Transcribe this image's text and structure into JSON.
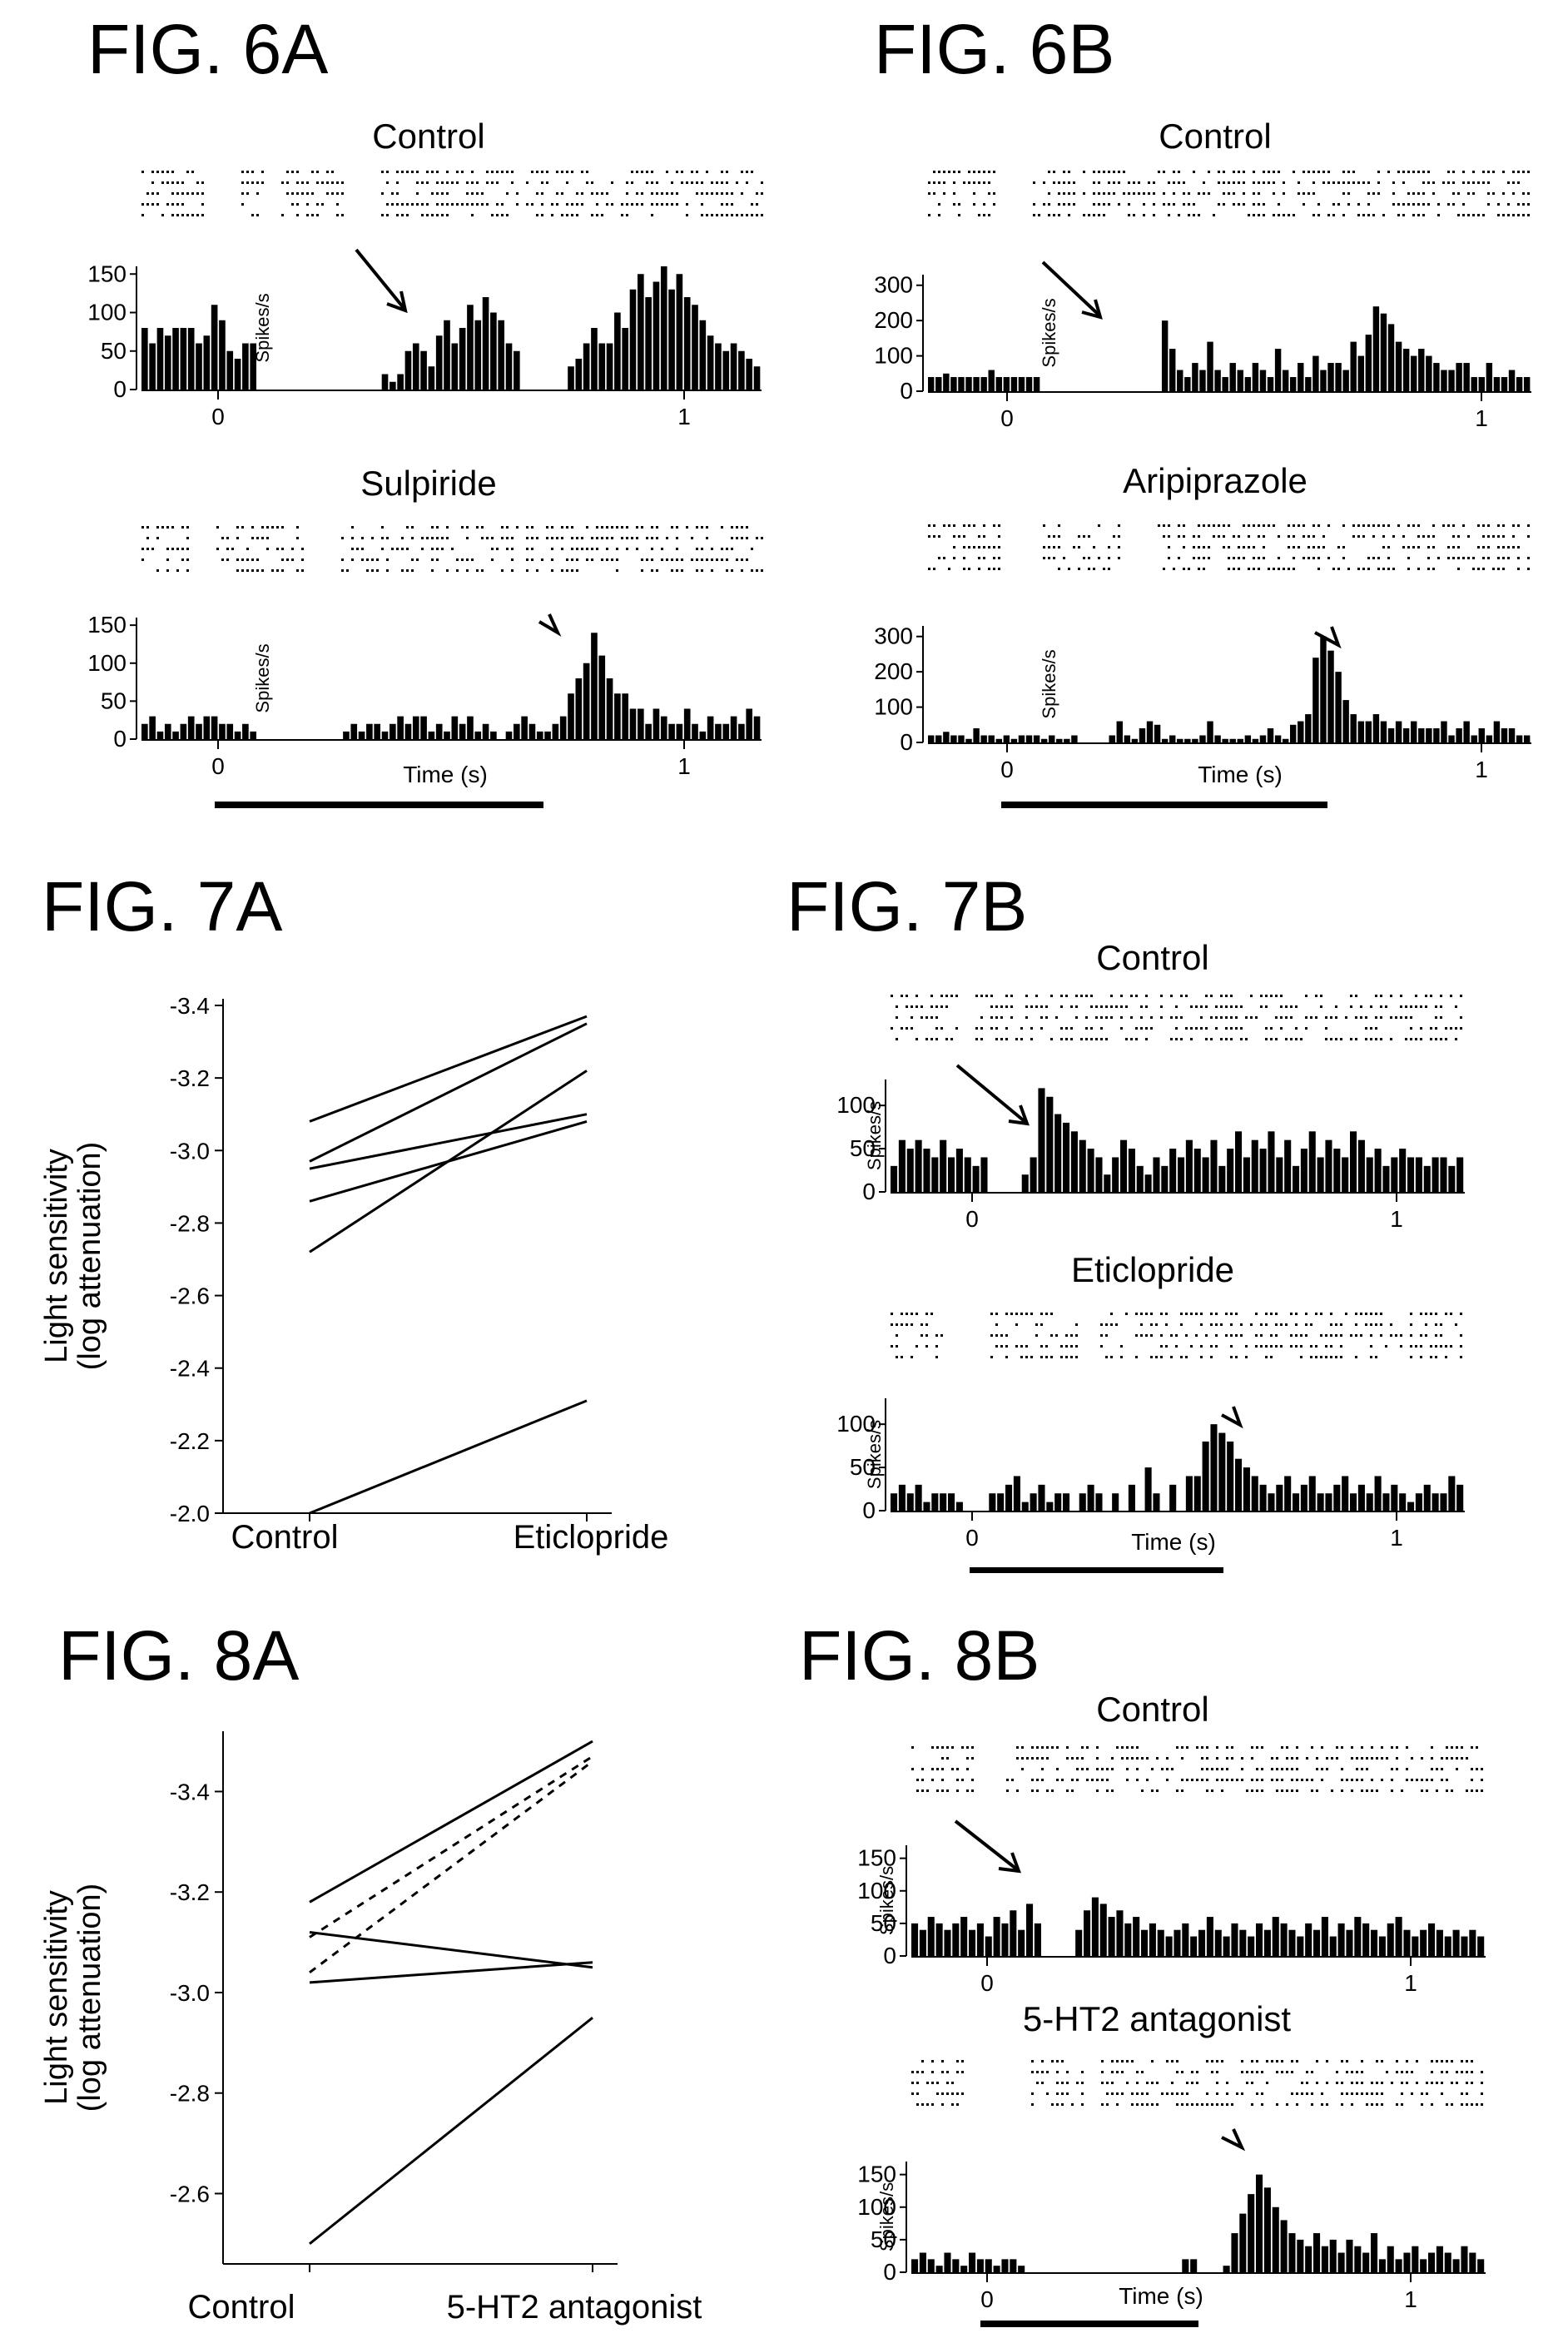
{
  "chart_data": [
    {
      "id": "6A",
      "type": "bar",
      "figure_label": "FIG. 6A",
      "ylabel": "Spikes/s",
      "xlabel": "Time (s)",
      "x_ticks": [
        "0",
        "1"
      ],
      "panels": [
        {
          "title": "Control",
          "ylim": [
            0,
            160
          ],
          "y_ticks": [
            "0",
            "50",
            "100",
            "150"
          ],
          "values": [
            80,
            60,
            80,
            70,
            80,
            80,
            80,
            60,
            70,
            110,
            90,
            50,
            40,
            60,
            60,
            0,
            0,
            0,
            0,
            0,
            0,
            0,
            0,
            0,
            0,
            0,
            0,
            0,
            0,
            0,
            0,
            20,
            10,
            20,
            50,
            60,
            50,
            30,
            70,
            90,
            60,
            80,
            110,
            90,
            120,
            100,
            90,
            60,
            50,
            0,
            0,
            0,
            0,
            0,
            0,
            30,
            40,
            60,
            80,
            60,
            60,
            100,
            80,
            130,
            150,
            120,
            140,
            160,
            130,
            150,
            120,
            110,
            90,
            70,
            60,
            50,
            60,
            50,
            40,
            30
          ]
        },
        {
          "title": "Sulpiride",
          "ylim": [
            0,
            160
          ],
          "y_ticks": [
            "0",
            "50",
            "100",
            "150"
          ],
          "values": [
            20,
            30,
            10,
            20,
            10,
            20,
            30,
            20,
            30,
            30,
            20,
            20,
            10,
            20,
            10,
            0,
            0,
            0,
            0,
            0,
            0,
            0,
            0,
            0,
            0,
            0,
            10,
            20,
            10,
            20,
            20,
            10,
            20,
            30,
            20,
            30,
            30,
            10,
            20,
            10,
            30,
            20,
            30,
            10,
            20,
            10,
            0,
            10,
            20,
            30,
            20,
            10,
            10,
            20,
            30,
            60,
            80,
            100,
            140,
            110,
            80,
            60,
            60,
            40,
            40,
            20,
            40,
            30,
            20,
            20,
            40,
            20,
            10,
            30,
            20,
            20,
            30,
            20,
            40,
            30
          ]
        }
      ]
    },
    {
      "id": "6B",
      "type": "bar",
      "figure_label": "FIG. 6B",
      "ylabel": "Spikes/s",
      "xlabel": "Time (s)",
      "x_ticks": [
        "0",
        "1"
      ],
      "panels": [
        {
          "title": "Control",
          "ylim": [
            0,
            330
          ],
          "y_ticks": [
            "0",
            "100",
            "200",
            "300"
          ],
          "values": [
            40,
            40,
            50,
            40,
            40,
            40,
            40,
            40,
            60,
            40,
            40,
            40,
            40,
            40,
            40,
            0,
            0,
            0,
            0,
            0,
            0,
            0,
            0,
            0,
            0,
            0,
            0,
            0,
            0,
            0,
            0,
            200,
            120,
            60,
            40,
            80,
            60,
            140,
            60,
            40,
            80,
            60,
            40,
            80,
            60,
            40,
            120,
            60,
            40,
            80,
            40,
            100,
            60,
            80,
            80,
            60,
            140,
            100,
            160,
            240,
            220,
            190,
            140,
            120,
            100,
            120,
            100,
            80,
            60,
            60,
            80,
            80,
            40,
            40,
            80,
            40,
            40,
            60,
            40,
            40
          ]
        },
        {
          "title": "Aripiprazole",
          "ylim": [
            0,
            330
          ],
          "y_ticks": [
            "0",
            "100",
            "200",
            "300"
          ],
          "values": [
            20,
            20,
            30,
            20,
            20,
            10,
            40,
            20,
            20,
            10,
            20,
            10,
            20,
            20,
            20,
            10,
            20,
            10,
            10,
            20,
            0,
            0,
            0,
            0,
            20,
            60,
            20,
            10,
            40,
            60,
            50,
            10,
            20,
            10,
            10,
            10,
            20,
            60,
            20,
            10,
            10,
            10,
            20,
            10,
            20,
            40,
            20,
            10,
            50,
            60,
            80,
            240,
            300,
            260,
            200,
            120,
            80,
            60,
            60,
            80,
            60,
            40,
            60,
            40,
            60,
            40,
            40,
            40,
            60,
            20,
            40,
            60,
            20,
            40,
            20,
            60,
            40,
            40,
            20,
            20
          ]
        }
      ]
    },
    {
      "id": "7A",
      "type": "line",
      "figure_label": "FIG. 7A",
      "ylabel": "Light sensitivity (log attenuation)",
      "categories": [
        "Control",
        "Eticlopride"
      ],
      "y_ticks": [
        "-2.0",
        "-2.2",
        "-2.4",
        "-2.6",
        "-2.8",
        "-3.0",
        "-3.2",
        "-3.4"
      ],
      "ylim": [
        -2.0,
        -3.4
      ],
      "series": [
        {
          "values": [
            -3.08,
            -3.37
          ],
          "style": "solid"
        },
        {
          "values": [
            -2.97,
            -3.35
          ],
          "style": "solid"
        },
        {
          "values": [
            -2.95,
            -3.1
          ],
          "style": "solid"
        },
        {
          "values": [
            -2.86,
            -3.08
          ],
          "style": "solid"
        },
        {
          "values": [
            -2.72,
            -3.22
          ],
          "style": "solid"
        },
        {
          "values": [
            -2.0,
            -2.31
          ],
          "style": "solid"
        }
      ]
    },
    {
      "id": "7B",
      "type": "bar",
      "figure_label": "FIG. 7B",
      "ylabel": "Spikes/s",
      "xlabel": "Time (s)",
      "x_ticks": [
        "0",
        "1"
      ],
      "panels": [
        {
          "title": "Control",
          "ylim": [
            0,
            130
          ],
          "y_ticks": [
            "0",
            "50",
            "100"
          ],
          "values": [
            30,
            60,
            50,
            60,
            50,
            40,
            60,
            40,
            50,
            40,
            30,
            40,
            0,
            0,
            0,
            0,
            20,
            40,
            120,
            110,
            90,
            80,
            70,
            60,
            50,
            40,
            20,
            40,
            60,
            50,
            30,
            20,
            40,
            30,
            50,
            40,
            60,
            50,
            40,
            60,
            30,
            50,
            70,
            40,
            60,
            50,
            70,
            40,
            60,
            30,
            50,
            70,
            40,
            60,
            50,
            40,
            70,
            60,
            40,
            50,
            30,
            40,
            50,
            40,
            40,
            30,
            40,
            40,
            30,
            40
          ]
        },
        {
          "title": "Eticlopride",
          "ylim": [
            0,
            130
          ],
          "y_ticks": [
            "0",
            "50",
            "100"
          ],
          "values": [
            20,
            30,
            20,
            30,
            10,
            20,
            20,
            20,
            10,
            0,
            0,
            0,
            20,
            20,
            30,
            40,
            10,
            20,
            30,
            10,
            20,
            20,
            0,
            20,
            30,
            20,
            0,
            20,
            0,
            30,
            0,
            50,
            20,
            0,
            30,
            0,
            40,
            40,
            80,
            100,
            90,
            80,
            60,
            50,
            40,
            30,
            20,
            30,
            40,
            20,
            30,
            40,
            20,
            20,
            30,
            40,
            20,
            30,
            20,
            40,
            20,
            30,
            20,
            10,
            20,
            30,
            20,
            20,
            40,
            30
          ]
        }
      ]
    },
    {
      "id": "8A",
      "type": "line",
      "figure_label": "FIG. 8A",
      "ylabel": "Light sensitivity (log attenuation)",
      "categories": [
        "Control",
        "5-HT2 antagonist"
      ],
      "y_ticks": [
        "-2.6",
        "-2.8",
        "-3.0",
        "-3.2",
        "-3.4"
      ],
      "ylim": [
        -2.46,
        -3.52
      ],
      "series": [
        {
          "values": [
            -3.18,
            -3.5
          ],
          "style": "solid"
        },
        {
          "values": [
            -3.11,
            -3.47
          ],
          "style": "dashed"
        },
        {
          "values": [
            -3.04,
            -3.46
          ],
          "style": "dashed"
        },
        {
          "values": [
            -3.12,
            -3.05
          ],
          "style": "solid"
        },
        {
          "values": [
            -3.02,
            -3.06
          ],
          "style": "solid"
        },
        {
          "values": [
            -2.5,
            -2.95
          ],
          "style": "solid"
        }
      ]
    },
    {
      "id": "8B",
      "type": "bar",
      "figure_label": "FIG. 8B",
      "ylabel": "Spikes/s",
      "xlabel": "Time (s)",
      "x_ticks": [
        "0",
        "1"
      ],
      "panels": [
        {
          "title": "Control",
          "ylim": [
            0,
            170
          ],
          "y_ticks": [
            "0",
            "50",
            "100",
            "150"
          ],
          "values": [
            50,
            40,
            60,
            50,
            40,
            50,
            60,
            40,
            50,
            30,
            60,
            50,
            70,
            40,
            80,
            50,
            0,
            0,
            0,
            0,
            40,
            70,
            90,
            80,
            60,
            70,
            50,
            60,
            40,
            50,
            40,
            30,
            40,
            50,
            30,
            40,
            60,
            40,
            30,
            50,
            40,
            30,
            50,
            40,
            60,
            50,
            40,
            30,
            50,
            40,
            60,
            30,
            50,
            40,
            60,
            50,
            40,
            30,
            50,
            60,
            40,
            30,
            40,
            50,
            40,
            30,
            40,
            30,
            40,
            30
          ]
        },
        {
          "title": "5-HT2 antagonist",
          "ylim": [
            0,
            170
          ],
          "y_ticks": [
            "0",
            "50",
            "100",
            "150"
          ],
          "values": [
            20,
            30,
            20,
            10,
            30,
            20,
            10,
            30,
            20,
            20,
            10,
            20,
            20,
            10,
            0,
            0,
            0,
            0,
            0,
            0,
            0,
            0,
            0,
            0,
            0,
            0,
            0,
            0,
            0,
            0,
            0,
            0,
            0,
            20,
            20,
            0,
            0,
            0,
            10,
            60,
            90,
            120,
            150,
            130,
            100,
            80,
            60,
            50,
            40,
            60,
            40,
            50,
            30,
            50,
            40,
            30,
            60,
            20,
            40,
            20,
            30,
            40,
            20,
            30,
            40,
            30,
            20,
            40,
            30,
            20
          ]
        }
      ]
    }
  ]
}
